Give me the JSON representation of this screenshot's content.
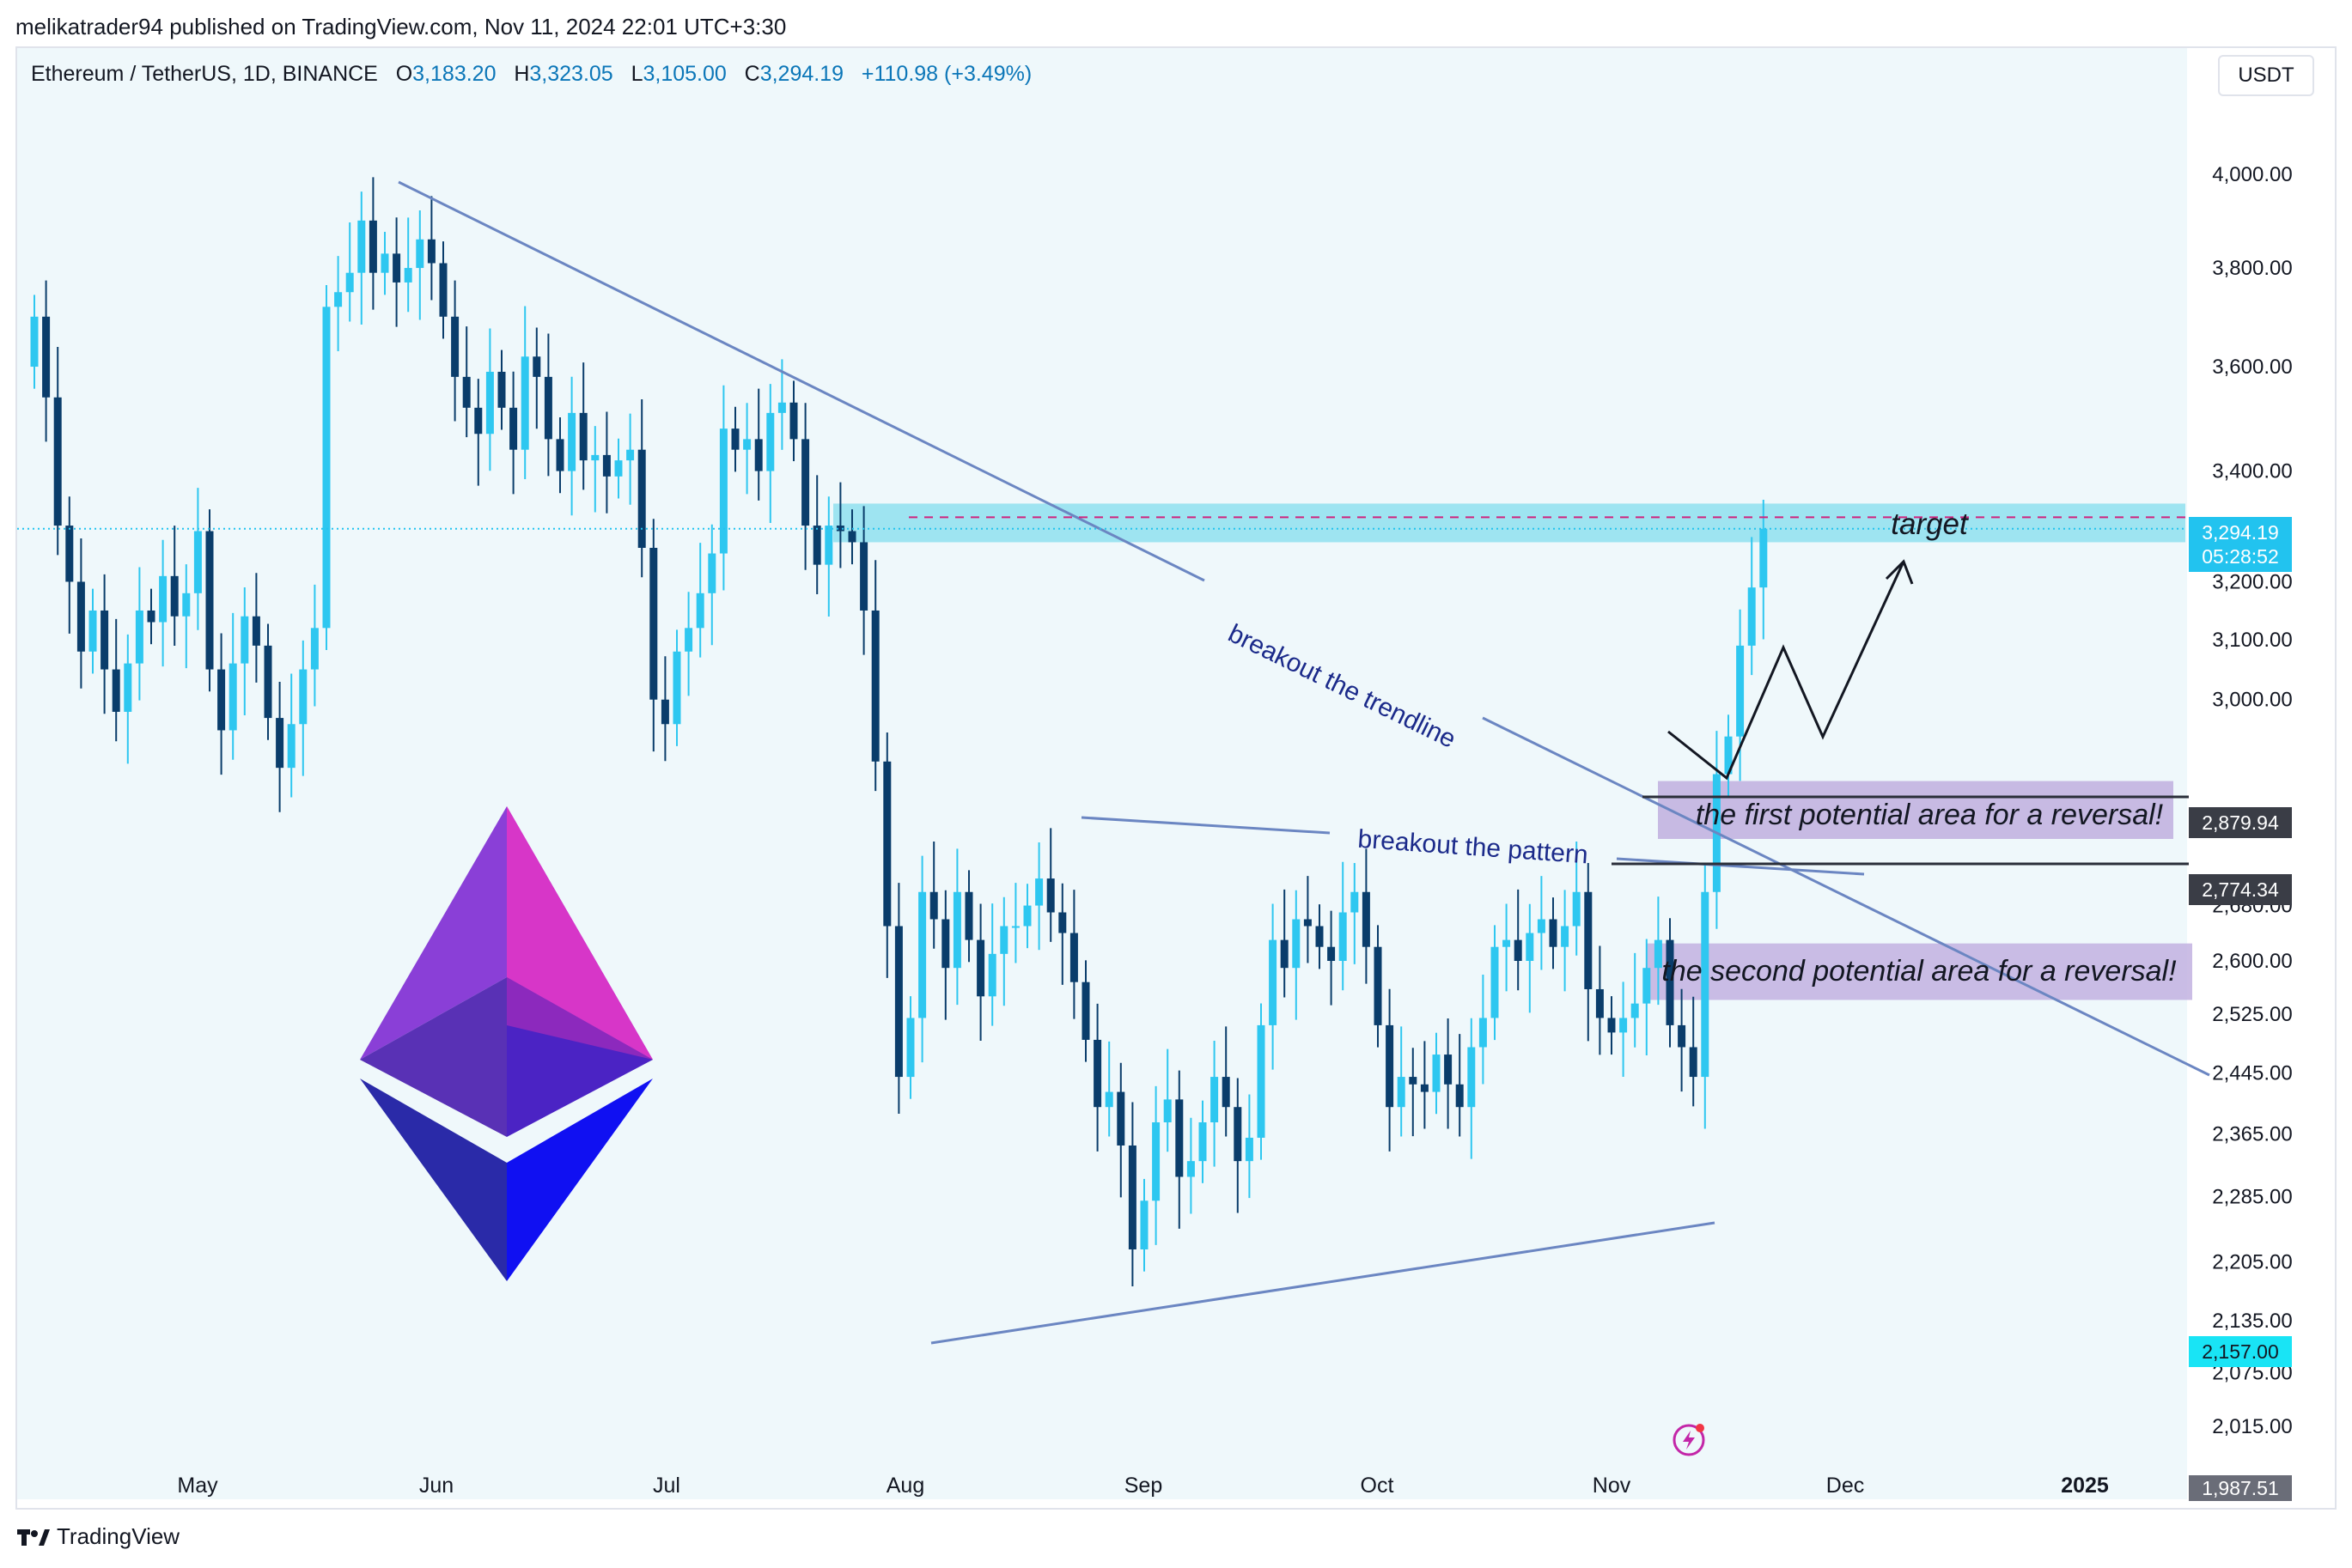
{
  "publish_line": "melikatrader94 published on TradingView.com, Nov 11, 2024 22:01 UTC+3:30",
  "header": {
    "symbol": "Ethereum / TetherUS, 1D, BINANCE",
    "o_label": "O",
    "o_value": "3,183.20",
    "h_label": "H",
    "h_value": "3,323.05",
    "l_label": "L",
    "l_value": "3,105.00",
    "c_label": "C",
    "c_value": "3,294.19",
    "change": "+110.98 (+3.49%)"
  },
  "currency_button": "USDT",
  "brand": "TradingView",
  "colors": {
    "background": "#eff8fb",
    "candle_up": "#2ec7f0",
    "candle_down": "#0a3d6b",
    "trendline": "#6b86c2",
    "zone_target": "#8fe0ee",
    "zone_reversal": "#c2b2e0",
    "price_badge": "#22c3ef",
    "low_badge": "#19e4f5",
    "label_badge": "#3a3d46",
    "annotation_text": "#1b2a8a"
  },
  "chart_data": {
    "type": "candlestick",
    "title": "Ethereum / TetherUS, 1D, BINANCE",
    "x_tick_labels": [
      "May",
      "Jun",
      "Jul",
      "Aug",
      "Sep",
      "Oct",
      "Nov",
      "Dec",
      "2025"
    ],
    "y_tick_labels": [
      "4,000.00",
      "3,800.00",
      "3,600.00",
      "3,400.00",
      "3,200.00",
      "3,100.00",
      "3,000.00",
      "2,680.00",
      "2,600.00",
      "2,525.00",
      "2,445.00",
      "2,365.00",
      "2,285.00",
      "2,205.00",
      "2,135.00",
      "2,075.00",
      "2,015.00"
    ],
    "y_scale": "log",
    "ylim": [
      1987.51,
      4150
    ],
    "price_axis_labels": {
      "last_price": "3,294.19",
      "countdown": "05:28:52",
      "level_1": "2,879.94",
      "level_2": "2,774.34",
      "low_price": "2,157.00",
      "bottom_price": "1,987.51"
    },
    "last_price_value": 3294.19,
    "key_levels": [
      2879.94,
      2774.34
    ],
    "target_zone": [
      3270,
      3340
    ],
    "zone_1": [
      2774.34,
      2879.94
    ],
    "zone_2": [
      2545,
      2625
    ],
    "annotations": {
      "target": "target",
      "zone_1": "the first potential area for a reversal!",
      "zone_2": "the second potential area for a reversal!",
      "trendline": "breakout the trendline",
      "pattern": "breakout the pattern"
    },
    "closes": [
      3700,
      3540,
      3300,
      3200,
      3080,
      3150,
      3050,
      2980,
      3060,
      3150,
      3130,
      3210,
      3140,
      3180,
      3290,
      3050,
      2950,
      3060,
      3140,
      3090,
      2970,
      2890,
      2960,
      3050,
      3120,
      3720,
      3750,
      3790,
      3900,
      3790,
      3830,
      3770,
      3800,
      3860,
      3810,
      3700,
      3580,
      3520,
      3470,
      3590,
      3520,
      3440,
      3620,
      3580,
      3460,
      3400,
      3510,
      3420,
      3430,
      3390,
      3420,
      3440,
      3260,
      3000,
      2960,
      3080,
      3120,
      3180,
      3250,
      3480,
      3440,
      3460,
      3400,
      3510,
      3530,
      3460,
      3300,
      3230,
      3300,
      3290,
      3270,
      3150,
      2900,
      2650,
      2440,
      2520,
      2700,
      2660,
      2590,
      2700,
      2630,
      2550,
      2610,
      2650,
      2650,
      2680,
      2720,
      2670,
      2640,
      2570,
      2490,
      2400,
      2420,
      2350,
      2220,
      2280,
      2380,
      2410,
      2310,
      2330,
      2380,
      2440,
      2400,
      2330,
      2360,
      2510,
      2630,
      2590,
      2660,
      2650,
      2620,
      2600,
      2670,
      2700,
      2620,
      2510,
      2400,
      2440,
      2430,
      2420,
      2470,
      2430,
      2400,
      2480,
      2520,
      2620,
      2630,
      2600,
      2640,
      2660,
      2620,
      2650,
      2700,
      2560,
      2520,
      2500,
      2520,
      2540,
      2590,
      2630,
      2510,
      2480,
      2440,
      2700,
      2880,
      2940,
      3090,
      3190,
      3294.19
    ]
  }
}
